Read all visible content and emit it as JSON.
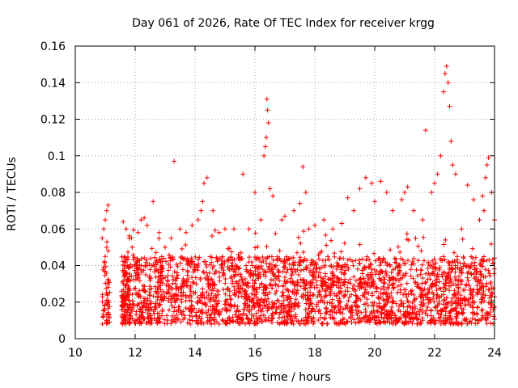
{
  "chart_data": {
    "type": "scatter",
    "title": "Day 061 of 2026, Rate Of TEC Index for receiver krgg",
    "xlabel": "GPS time / hours",
    "ylabel": "ROTI / TECUs",
    "xlim": [
      10,
      24
    ],
    "ylim": [
      0,
      0.16
    ],
    "xticks": [
      10,
      12,
      14,
      16,
      18,
      20,
      22,
      24
    ],
    "xtick_labels": [
      "10",
      "12",
      "14",
      "16",
      "18",
      "20",
      "22",
      "24"
    ],
    "yticks": [
      0,
      0.02,
      0.04,
      0.06,
      0.08,
      0.1,
      0.12,
      0.14,
      0.16
    ],
    "ytick_labels": [
      "0",
      "0.02",
      "0.04",
      "0.06",
      "0.08",
      "0.1",
      "0.12",
      "0.14",
      "0.16"
    ],
    "grid": true,
    "marker": "+",
    "marker_color": "#ff0000",
    "dense_band": {
      "x_range": [
        10.9,
        24
      ],
      "typical_range": [
        0.008,
        0.045
      ]
    },
    "series": [
      {
        "name": "ROTI",
        "x": [
          10.9,
          10.95,
          11.0,
          11.05,
          11.1,
          11.0,
          11.05,
          11.1,
          11.6,
          11.7,
          11.8,
          11.9,
          12.1,
          12.2,
          12.3,
          12.4,
          12.6,
          12.8,
          13.0,
          13.2,
          13.3,
          13.5,
          13.7,
          13.9,
          14.1,
          14.2,
          14.25,
          14.3,
          14.4,
          14.6,
          14.8,
          15.0,
          15.3,
          15.6,
          15.8,
          16.0,
          16.2,
          16.3,
          16.35,
          16.38,
          16.4,
          16.42,
          16.45,
          16.5,
          16.6,
          16.9,
          17.0,
          17.3,
          17.5,
          17.6,
          17.7,
          17.8,
          18.0,
          18.3,
          18.6,
          18.9,
          19.1,
          19.3,
          19.5,
          19.7,
          19.9,
          20.0,
          20.2,
          20.4,
          20.6,
          20.9,
          21.0,
          21.1,
          21.3,
          21.6,
          21.7,
          21.9,
          22.0,
          22.1,
          22.2,
          22.3,
          22.35,
          22.4,
          22.45,
          22.5,
          22.55,
          22.6,
          22.7,
          22.9,
          23.1,
          23.3,
          23.5,
          23.6,
          23.65,
          23.7,
          23.75,
          23.8,
          23.9,
          24.0
        ],
        "y": [
          0.055,
          0.06,
          0.065,
          0.07,
          0.073,
          0.045,
          0.05,
          0.048,
          0.064,
          0.06,
          0.055,
          0.05,
          0.058,
          0.065,
          0.066,
          0.062,
          0.075,
          0.058,
          0.05,
          0.055,
          0.097,
          0.06,
          0.058,
          0.062,
          0.065,
          0.07,
          0.075,
          0.085,
          0.088,
          0.07,
          0.058,
          0.06,
          0.06,
          0.09,
          0.06,
          0.08,
          0.065,
          0.1,
          0.105,
          0.11,
          0.131,
          0.125,
          0.118,
          0.082,
          0.078,
          0.065,
          0.067,
          0.07,
          0.074,
          0.094,
          0.08,
          0.06,
          0.062,
          0.065,
          0.06,
          0.063,
          0.077,
          0.07,
          0.082,
          0.088,
          0.085,
          0.075,
          0.086,
          0.08,
          0.07,
          0.076,
          0.08,
          0.083,
          0.07,
          0.065,
          0.114,
          0.08,
          0.085,
          0.09,
          0.1,
          0.135,
          0.145,
          0.149,
          0.14,
          0.127,
          0.108,
          0.095,
          0.09,
          0.06,
          0.084,
          0.076,
          0.065,
          0.078,
          0.07,
          0.088,
          0.095,
          0.099,
          0.08,
          0.065
        ]
      }
    ]
  }
}
